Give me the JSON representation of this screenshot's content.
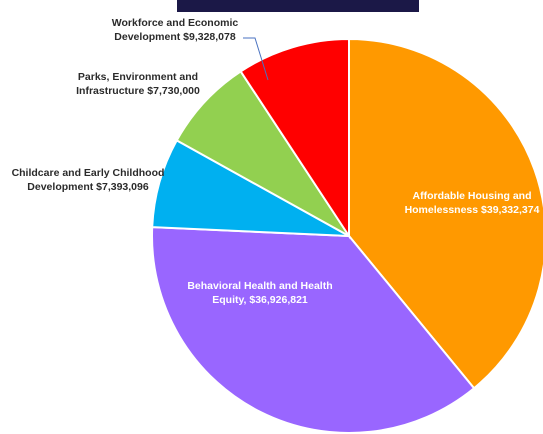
{
  "chart_data": {
    "type": "pie",
    "title": "",
    "slices": [
      {
        "name": "Affordable Housing and Homelessness",
        "value": 39332374,
        "amount_text": "$39,332,374",
        "line1": "Affordable Housing and",
        "line2": "Homelessness",
        "color": "#ff9900"
      },
      {
        "name": "Behavioral Health and Health Equity",
        "value": 36926821,
        "amount_text": "$36,926,821",
        "line1": "Behavioral Health and Health",
        "line2": "Equity,",
        "color": "#9966ff"
      },
      {
        "name": "Childcare and Early Childhood Development",
        "value": 7393096,
        "amount_text": "$7,393,096",
        "line1": "Childcare and Early Childhood",
        "line2": "Development",
        "color": "#00b0f0"
      },
      {
        "name": "Parks, Environment and Infrastructure",
        "value": 7730000,
        "amount_text": "$7,730,000",
        "line1": "Parks, Environment and",
        "line2": "Infrastructure",
        "color": "#92d050"
      },
      {
        "name": "Workforce and Economic Development",
        "value": 9328078,
        "amount_text": "$9,328,078",
        "line1": "Workforce and Economic",
        "line2": "Development",
        "color": "#ff0000"
      }
    ],
    "legend": "none",
    "start_direction": "top",
    "order": "clockwise"
  },
  "colors": {
    "header_bar": "#1b1847",
    "slice_border": "#ffffff",
    "leader_line": "#4a72c0"
  }
}
